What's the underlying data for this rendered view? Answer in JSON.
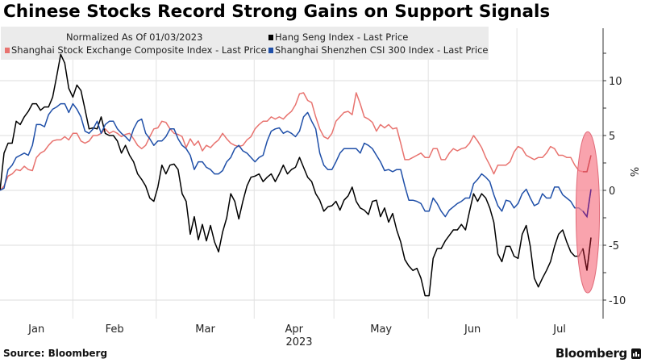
{
  "header": {
    "title": "Chinese Stocks Record Strong Gains on Support Signals"
  },
  "footer": {
    "source": "Source: Bloomberg",
    "brand": "Bloomberg"
  },
  "chart_data": {
    "type": "line",
    "title": "Chinese Stocks Record Strong Gains on Support Signals",
    "xlabel": "2023",
    "ylabel": "%",
    "ylim": [
      -11.5,
      14.5
    ],
    "yticks": [
      10,
      5,
      0,
      -5,
      -10
    ],
    "ytick_labels": [
      "10",
      "5",
      "0",
      "-5",
      "-10"
    ],
    "grid": true,
    "legend_position": "top-left",
    "legend_note": "Normalized As Of 01/03/2023",
    "x_range": [
      0,
      146
    ],
    "x_ticks": [
      {
        "label": "Jan",
        "boundary": 0
      },
      {
        "label": "Feb",
        "boundary": 18
      },
      {
        "label": "Mar",
        "boundary": 38.6
      },
      {
        "label": "Apr",
        "boundary": 62.8
      },
      {
        "label": "May",
        "boundary": 82.5
      },
      {
        "label": "Jun",
        "boundary": 105.8
      },
      {
        "label": "Jul",
        "boundary": 127.7
      }
    ],
    "x_end_boundary": 148.8,
    "year_label": "2023",
    "annotation": {
      "type": "ellipse",
      "x_center": 145.2,
      "y_center": -2.0,
      "x_halfwidth": 2.9,
      "y_halfheight": 7.35,
      "color": "#f28b95"
    },
    "series": [
      {
        "name": "Shanghai Stock Exchange Composite Index - Last Price",
        "color": "#e8736f",
        "values": [
          0,
          0.4,
          1.3,
          1.5,
          1.9,
          1.8,
          2.2,
          1.9,
          1.8,
          3.0,
          3.4,
          3.6,
          4.1,
          4.5,
          4.6,
          4.6,
          4.9,
          4.6,
          5.2,
          5.2,
          4.5,
          4.3,
          4.5,
          5.0,
          5.0,
          5.2,
          5.6,
          5.2,
          5.4,
          5.2,
          4.9,
          5.1,
          5.2,
          4.7,
          4.1,
          3.8,
          4.1,
          4.9,
          5.6,
          5.7,
          6.3,
          6.2,
          5.6,
          5.2,
          5.1,
          4.9,
          3.9,
          4.7,
          4.1,
          4.5,
          3.6,
          4.1,
          3.9,
          4.3,
          4.6,
          5.2,
          4.7,
          4.3,
          4.1,
          4.0,
          4.1,
          4.6,
          4.9,
          5.6,
          6.0,
          6.3,
          6.3,
          6.7,
          6.5,
          6.7,
          6.5,
          6.9,
          7.2,
          7.8,
          8.8,
          8.9,
          8.2,
          8.0,
          6.7,
          5.6,
          4.9,
          4.7,
          5.2,
          6.3,
          6.7,
          7.1,
          7.2,
          6.9,
          8.9,
          7.9,
          6.7,
          6.5,
          6.2,
          5.4,
          6.0,
          5.7,
          6.0,
          5.6,
          5.7,
          4.3,
          2.8,
          2.8,
          3.0,
          3.2,
          3.4,
          3.0,
          3.0,
          3.8,
          3.8,
          2.8,
          2.8,
          3.4,
          3.8,
          3.6,
          3.8,
          3.9,
          4.3,
          5.0,
          4.5,
          3.9,
          3.0,
          2.3,
          1.5,
          2.3,
          2.3,
          2.3,
          2.6,
          3.5,
          4.0,
          3.8,
          3.2,
          3.0,
          2.8,
          3.0,
          3.0,
          3.4,
          4.0,
          3.8,
          3.2,
          3.2,
          3.0,
          3.0,
          2.3,
          1.8,
          1.7,
          1.7,
          3.2
        ]
      },
      {
        "name": "Hang Seng Index - Last Price",
        "color": "#000000",
        "values": [
          0,
          3.4,
          4.3,
          4.3,
          6.3,
          6.0,
          6.7,
          7.2,
          7.9,
          7.9,
          7.3,
          7.6,
          7.6,
          8.5,
          10.4,
          12.4,
          11.6,
          9.3,
          8.5,
          9.6,
          9.1,
          7.4,
          5.6,
          5.7,
          5.6,
          6.7,
          5.2,
          5.0,
          5.0,
          4.5,
          3.4,
          4.1,
          3.2,
          2.6,
          1.5,
          1.0,
          0.4,
          -0.7,
          -1.0,
          0.3,
          2.3,
          1.5,
          2.3,
          2.4,
          1.9,
          -0.3,
          -1.0,
          -4.0,
          -2.4,
          -4.5,
          -3.1,
          -4.6,
          -3.2,
          -4.7,
          -5.6,
          -3.8,
          -2.5,
          -0.3,
          -1.0,
          -2.6,
          -1.0,
          0.4,
          1.2,
          1.3,
          1.5,
          0.8,
          1.2,
          1.5,
          0.8,
          1.5,
          2.3,
          1.5,
          1.9,
          2.1,
          3.0,
          2.1,
          1.2,
          0.8,
          -0.3,
          -0.9,
          -1.9,
          -1.5,
          -1.4,
          -1.0,
          -1.8,
          -0.9,
          -0.5,
          0.3,
          -1.0,
          -1.6,
          -1.8,
          -2.2,
          -1.0,
          -0.9,
          -2.4,
          -1.6,
          -2.9,
          -2.1,
          -3.6,
          -4.7,
          -6.3,
          -6.9,
          -7.3,
          -7.1,
          -8.0,
          -9.6,
          -9.6,
          -6.2,
          -5.3,
          -5.3,
          -4.6,
          -4.1,
          -3.6,
          -3.6,
          -3.1,
          -3.6,
          -1.9,
          -0.3,
          -1.0,
          -0.3,
          -0.7,
          -1.6,
          -2.9,
          -5.8,
          -6.5,
          -5.1,
          -5.1,
          -6.0,
          -6.2,
          -4.0,
          -3.2,
          -5.1,
          -8.0,
          -8.8,
          -8.0,
          -7.3,
          -6.5,
          -5.1,
          -4.0,
          -3.6,
          -4.7,
          -5.6,
          -6.0,
          -6.0,
          -5.3,
          -7.3,
          -4.3
        ]
      },
      {
        "name": "Shanghai Shenzhen CSI 300 Index - Last Price",
        "color": "#1f4fa8",
        "values": [
          0,
          0.2,
          1.9,
          2.3,
          3.0,
          3.2,
          3.4,
          3.2,
          4.1,
          6.0,
          6.0,
          5.8,
          6.9,
          7.4,
          7.6,
          7.9,
          7.9,
          7.1,
          7.9,
          7.4,
          6.7,
          5.4,
          5.2,
          5.6,
          6.3,
          5.2,
          6.0,
          6.3,
          6.3,
          5.6,
          5.2,
          4.9,
          4.5,
          5.6,
          6.3,
          6.5,
          5.2,
          4.7,
          4.1,
          4.5,
          4.5,
          4.9,
          5.6,
          5.6,
          4.7,
          4.1,
          3.8,
          3.2,
          1.9,
          2.6,
          2.6,
          2.1,
          1.9,
          1.5,
          1.5,
          1.8,
          2.6,
          3.0,
          3.8,
          4.1,
          3.6,
          3.4,
          3.0,
          2.6,
          3.0,
          3.2,
          4.5,
          5.4,
          5.6,
          5.7,
          5.2,
          5.4,
          5.2,
          4.9,
          5.4,
          6.7,
          7.1,
          6.3,
          5.6,
          3.4,
          2.3,
          1.9,
          1.9,
          2.6,
          3.4,
          3.8,
          3.8,
          3.8,
          3.8,
          3.4,
          4.3,
          4.1,
          3.8,
          3.2,
          2.6,
          1.8,
          1.9,
          1.7,
          1.9,
          1.9,
          0.4,
          -0.9,
          -0.9,
          -1.0,
          -1.2,
          -1.9,
          -1.9,
          -0.7,
          -1.2,
          -1.9,
          -2.4,
          -1.8,
          -1.5,
          -1.2,
          -1.0,
          -0.7,
          -0.7,
          0.6,
          1.0,
          1.5,
          1.2,
          0.8,
          -0.4,
          -1.4,
          -1.9,
          -0.9,
          -1.0,
          -1.6,
          -1.2,
          -0.3,
          0.1,
          -0.7,
          -1.4,
          -1.2,
          -0.3,
          -0.7,
          -0.7,
          0.3,
          0.3,
          -0.4,
          -0.7,
          -1.0,
          -1.6,
          -1.6,
          -1.9,
          -2.4,
          0.1
        ]
      }
    ]
  }
}
